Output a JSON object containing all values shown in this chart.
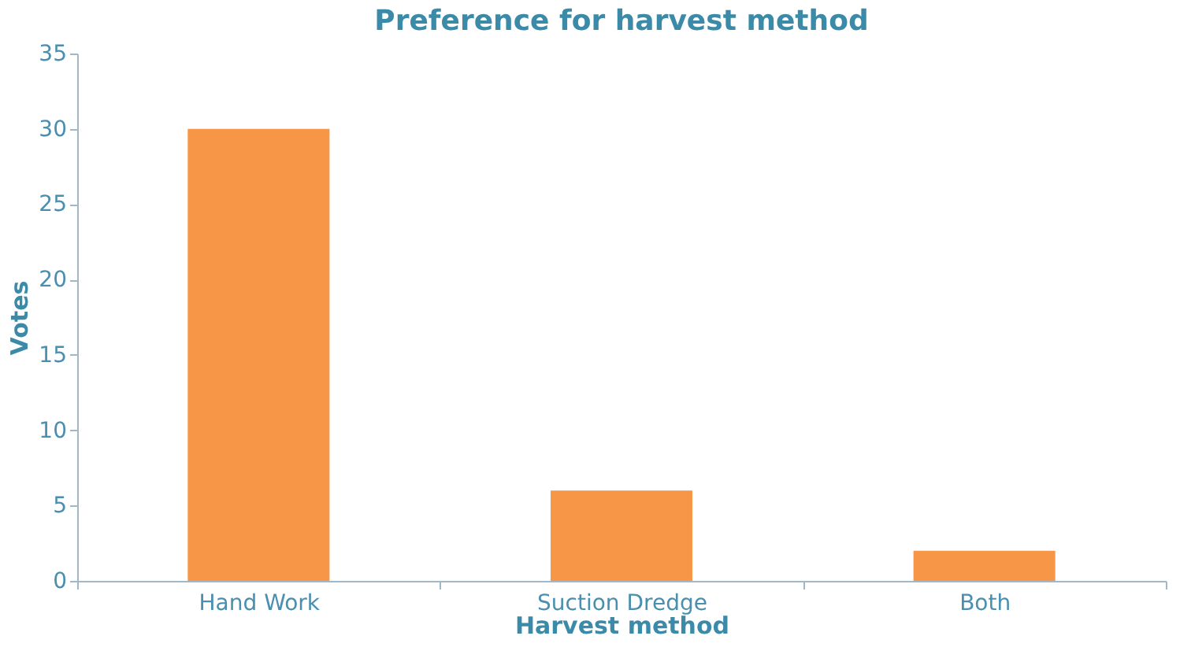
{
  "chart_data": {
    "type": "bar",
    "title": "Preference for harvest method",
    "xlabel": "Harvest method",
    "ylabel": "Votes",
    "categories": [
      "Hand Work",
      "Suction Dredge",
      "Both"
    ],
    "series": [
      {
        "color": "#f79646",
        "values": [
          30,
          6,
          2
        ]
      }
    ],
    "ylim": [
      0,
      35
    ],
    "yticks": [
      0,
      5,
      10,
      15,
      20,
      25,
      30,
      35
    ],
    "grid": false
  }
}
